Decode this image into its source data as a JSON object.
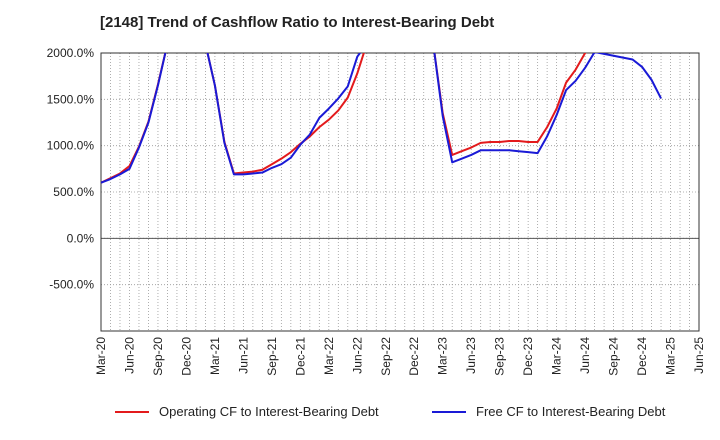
{
  "title": "[2148]  Trend of Cashflow Ratio to Interest-Bearing Debt",
  "chart_data": {
    "type": "line",
    "title": "[2148]  Trend of Cashflow Ratio to Interest-Bearing Debt",
    "xlabel": "",
    "ylabel": "",
    "ylim": [
      -1000,
      2000
    ],
    "yticks": [
      2000,
      1500,
      1000,
      500,
      0,
      -500
    ],
    "ytick_labels": [
      "2000.0%",
      "1500.0%",
      "1000.0%",
      "500.0%",
      "0.0%",
      "-500.0%"
    ],
    "xtick_labels": [
      "Mar-20",
      "Jun-20",
      "Sep-20",
      "Dec-20",
      "Mar-21",
      "Jun-21",
      "Sep-21",
      "Dec-21",
      "Mar-22",
      "Jun-22",
      "Sep-22",
      "Dec-22",
      "Mar-23",
      "Jun-23",
      "Sep-23",
      "Dec-23",
      "Mar-24",
      "Jun-24",
      "Sep-24",
      "Dec-24",
      "Mar-25",
      "Jun-25"
    ],
    "grid": true,
    "legend_position": "bottom",
    "series": [
      {
        "name": "Operating CF to Interest-Bearing Debt",
        "color": "#e31a1c",
        "points": [
          [
            "Mar-20",
            600
          ],
          [
            "Apr-20",
            650
          ],
          [
            "May-20",
            700
          ],
          [
            "Jun-20",
            780
          ],
          [
            "Jul-20",
            990
          ],
          [
            "Aug-20",
            1260
          ],
          [
            "Sep-20",
            1660
          ],
          [
            "Oct-20",
            2100
          ],
          [
            "Feb-21",
            2100
          ],
          [
            "Mar-21",
            1650
          ],
          [
            "Apr-21",
            1040
          ],
          [
            "May-21",
            700
          ],
          [
            "Jun-21",
            710
          ],
          [
            "Jul-21",
            720
          ],
          [
            "Aug-21",
            740
          ],
          [
            "Sep-21",
            800
          ],
          [
            "Oct-21",
            860
          ],
          [
            "Nov-21",
            930
          ],
          [
            "Dec-21",
            1020
          ],
          [
            "Jan-22",
            1100
          ],
          [
            "Feb-22",
            1200
          ],
          [
            "Mar-22",
            1280
          ],
          [
            "Apr-22",
            1380
          ],
          [
            "May-22",
            1520
          ],
          [
            "Jun-22",
            1780
          ],
          [
            "Jul-22",
            2100
          ],
          [
            "Feb-23",
            2100
          ],
          [
            "Mar-23",
            1350
          ],
          [
            "Apr-23",
            900
          ],
          [
            "May-23",
            940
          ],
          [
            "Jun-23",
            980
          ],
          [
            "Jul-23",
            1030
          ],
          [
            "Aug-23",
            1040
          ],
          [
            "Sep-23",
            1040
          ],
          [
            "Oct-23",
            1050
          ],
          [
            "Nov-23",
            1050
          ],
          [
            "Dec-23",
            1040
          ],
          [
            "Jan-24",
            1040
          ],
          [
            "Feb-24",
            1200
          ],
          [
            "Mar-24",
            1400
          ],
          [
            "Apr-24",
            1680
          ],
          [
            "May-24",
            1820
          ],
          [
            "Jun-24",
            2000
          ],
          [
            "Jul-24",
            2100
          ]
        ]
      },
      {
        "name": "Free CF to Interest-Bearing Debt",
        "color": "#1a1ad6",
        "points": [
          [
            "Mar-20",
            600
          ],
          [
            "Apr-20",
            640
          ],
          [
            "May-20",
            690
          ],
          [
            "Jun-20",
            750
          ],
          [
            "Jul-20",
            980
          ],
          [
            "Aug-20",
            1250
          ],
          [
            "Sep-20",
            1650
          ],
          [
            "Oct-20",
            2100
          ],
          [
            "Feb-21",
            2100
          ],
          [
            "Mar-21",
            1650
          ],
          [
            "Apr-21",
            1030
          ],
          [
            "May-21",
            690
          ],
          [
            "Jun-21",
            690
          ],
          [
            "Jul-21",
            700
          ],
          [
            "Aug-21",
            710
          ],
          [
            "Sep-21",
            760
          ],
          [
            "Oct-21",
            800
          ],
          [
            "Nov-21",
            870
          ],
          [
            "Dec-21",
            1010
          ],
          [
            "Jan-22",
            1120
          ],
          [
            "Feb-22",
            1300
          ],
          [
            "Mar-22",
            1400
          ],
          [
            "Apr-22",
            1510
          ],
          [
            "May-22",
            1640
          ],
          [
            "Jun-22",
            1960
          ],
          [
            "Jul-22",
            2100
          ],
          [
            "Feb-23",
            2100
          ],
          [
            "Mar-23",
            1320
          ],
          [
            "Apr-23",
            820
          ],
          [
            "May-23",
            860
          ],
          [
            "Jun-23",
            900
          ],
          [
            "Jul-23",
            950
          ],
          [
            "Aug-23",
            950
          ],
          [
            "Sep-23",
            950
          ],
          [
            "Oct-23",
            950
          ],
          [
            "Nov-23",
            940
          ],
          [
            "Dec-23",
            930
          ],
          [
            "Jan-24",
            920
          ],
          [
            "Feb-24",
            1100
          ],
          [
            "Mar-24",
            1330
          ],
          [
            "Apr-24",
            1600
          ],
          [
            "May-24",
            1700
          ],
          [
            "Jun-24",
            1840
          ],
          [
            "Jul-24",
            2010
          ],
          [
            "Aug-24",
            1990
          ],
          [
            "Sep-24",
            1970
          ],
          [
            "Oct-24",
            1950
          ],
          [
            "Nov-24",
            1930
          ],
          [
            "Dec-24",
            1850
          ],
          [
            "Jan-25",
            1710
          ],
          [
            "Feb-25",
            1510
          ]
        ]
      }
    ]
  }
}
